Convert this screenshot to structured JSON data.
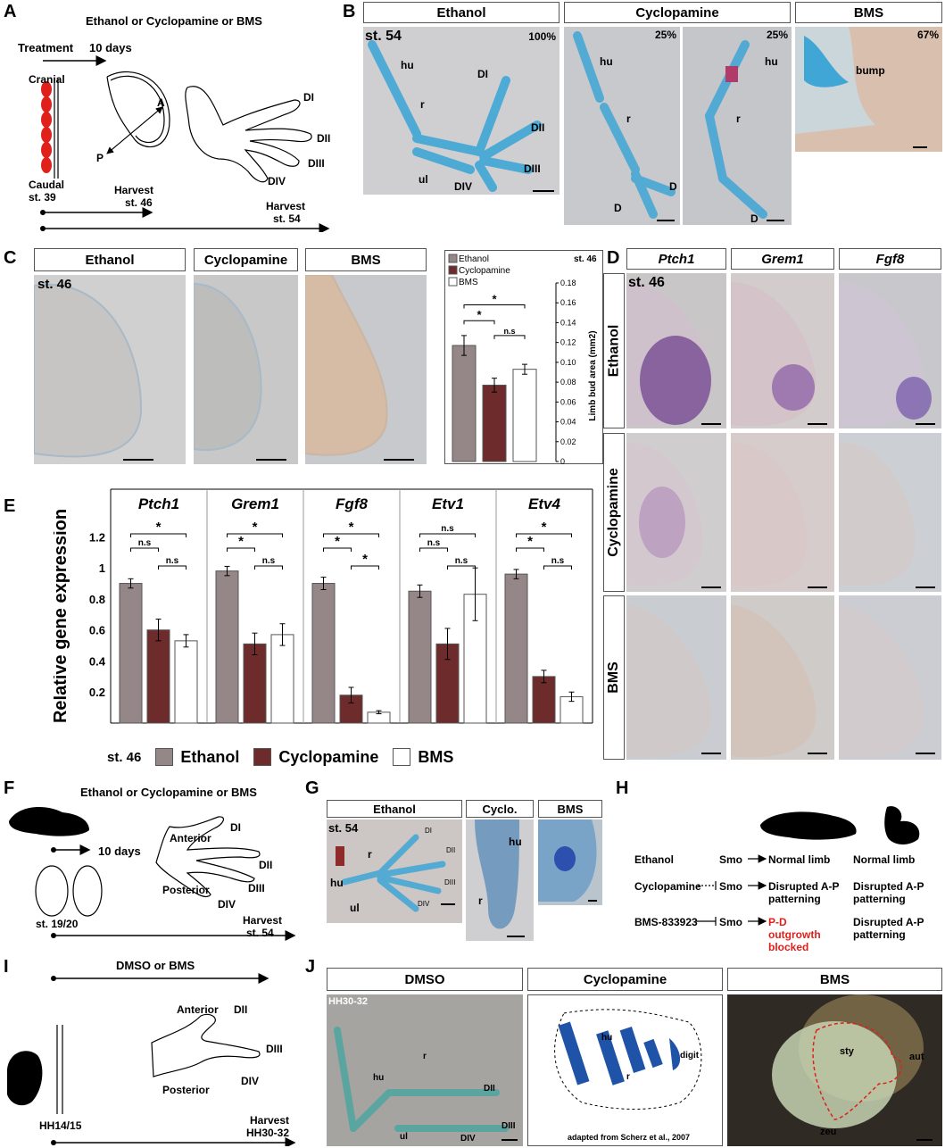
{
  "panels": {
    "A": {
      "label": "A",
      "header": "Ethanol or Cyclopamine or BMS",
      "treatment": "Treatment",
      "days": "10 days",
      "cranial": "Cranial",
      "caudal": "Caudal",
      "stage_start": "st. 39",
      "harvest1": "Harvest",
      "harvest1_stage": "st. 46",
      "harvest2": "Harvest",
      "harvest2_stage": "st. 54",
      "axis_a": "A",
      "axis_p": "P",
      "digits": [
        "DI",
        "DII",
        "DIII",
        "DIV"
      ]
    },
    "B": {
      "label": "B",
      "headers": [
        "Ethanol",
        "Cyclopamine",
        "BMS"
      ],
      "stage": "st. 54",
      "percents": [
        "100%",
        "25%",
        "25%",
        "67%"
      ],
      "ethanol_labels": [
        "hu",
        "r",
        "ul",
        "DI",
        "DII",
        "DIII",
        "DIV"
      ],
      "cyc1_labels": [
        "hu",
        "r",
        "D",
        "D"
      ],
      "cyc2_labels": [
        "hu",
        "r",
        "D"
      ],
      "bms_label": "bump"
    },
    "C": {
      "label": "C",
      "headers": [
        "Ethanol",
        "Cyclopamine",
        "BMS"
      ],
      "stage": "st. 46"
    },
    "D": {
      "label": "D",
      "headers": [
        "Ptch1",
        "Grem1",
        "Fgf8"
      ],
      "rows": [
        "Ethanol",
        "Cyclopamine",
        "BMS"
      ],
      "stage": "st. 46"
    },
    "E": {
      "label": "E",
      "stage": "st. 46",
      "legend": [
        "Ethanol",
        "Cyclopamine",
        "BMS"
      ]
    },
    "F": {
      "label": "F",
      "header": "Ethanol or Cyclopamine or BMS",
      "days": "10 days",
      "anterior": "Anterior",
      "posterior": "Posterior",
      "digits": [
        "DI",
        "DII",
        "DIII",
        "DIV"
      ],
      "stage_start": "st. 19/20",
      "harvest": "Harvest",
      "harvest_stage": "st. 54"
    },
    "G": {
      "label": "G",
      "headers": [
        "Ethanol",
        "Cyclo.",
        "BMS"
      ],
      "stage": "st. 54",
      "labels": [
        "hu",
        "r",
        "ul",
        "DI",
        "DII",
        "DIII",
        "DIV",
        "hu",
        "r"
      ]
    },
    "H": {
      "label": "H",
      "rows": [
        {
          "drug": "Ethanol",
          "target": "Smo",
          "axolotl": "Normal limb",
          "chicken": "Normal limb"
        },
        {
          "drug": "Cyclopamine",
          "target": "Smo",
          "axolotl": "Disrupted A-P patterning",
          "chicken": "Disrupted A-P patterning"
        },
        {
          "drug": "BMS-833923",
          "target": "Smo",
          "axolotl": "P-D outgrowth blocked",
          "chicken": "Disrupted A-P patterning"
        }
      ],
      "highlight_color": "#e0201b"
    },
    "I": {
      "label": "I",
      "header": "DMSO or BMS",
      "anterior": "Anterior",
      "posterior": "Posterior",
      "digits": [
        "DII",
        "DIII",
        "DIV"
      ],
      "stage_start": "HH14/15",
      "harvest": "Harvest",
      "harvest_stage": "HH30-32"
    },
    "J": {
      "label": "J",
      "headers": [
        "DMSO",
        "Cyclopamine",
        "BMS"
      ],
      "stage": "HH30-32",
      "dmso_labels": [
        "hu",
        "r",
        "ul",
        "DII",
        "DIII",
        "DIV"
      ],
      "cyc_labels": [
        "hu",
        "r",
        "digit"
      ],
      "cyc_credit": "adapted from Scherz et al., 2007",
      "bms_labels": [
        "sty",
        "aut",
        "zeu"
      ]
    }
  },
  "colors": {
    "ethanol": "#958688",
    "cyclopamine": "#6d2b2b",
    "bms": "#ffffff",
    "alcian": "#3fa6d6",
    "arrow": "#e0201b"
  },
  "chart_data": [
    {
      "type": "bar",
      "panel": "C",
      "stage": "st. 46",
      "categories": [
        "Ethanol",
        "Cyclopamine",
        "BMS"
      ],
      "values": [
        0.117,
        0.077,
        0.093
      ],
      "errors": [
        0.01,
        0.007,
        0.005
      ],
      "ylabel": "Limb bud area (mm2)",
      "ylim": [
        0,
        0.18
      ],
      "yticks": [
        "0",
        "0.02",
        "0.04",
        "0.06",
        "0.08",
        "0.10",
        "0.12",
        "0.14",
        "0.16",
        "0.18"
      ],
      "legend": [
        "Ethanol",
        "Cyclopamine",
        "BMS"
      ],
      "sig": [
        "*",
        "*",
        "n.s"
      ]
    },
    {
      "type": "bar",
      "panel": "E",
      "stage": "st. 46",
      "ylabel": "Relative gene expression",
      "ylim": [
        0,
        1.2
      ],
      "yticks": [
        "0.2",
        "0.4",
        "0.6",
        "0.8",
        "1",
        "1.2"
      ],
      "categories": [
        "Ptch1",
        "Grem1",
        "Fgf8",
        "Etv1",
        "Etv4"
      ],
      "series": [
        {
          "name": "Ethanol",
          "values": [
            0.9,
            0.98,
            0.9,
            0.85,
            0.96
          ],
          "errors": [
            0.03,
            0.03,
            0.04,
            0.04,
            0.03
          ]
        },
        {
          "name": "Cyclopamine",
          "values": [
            0.6,
            0.51,
            0.18,
            0.51,
            0.3
          ],
          "errors": [
            0.07,
            0.07,
            0.05,
            0.1,
            0.04
          ]
        },
        {
          "name": "BMS",
          "values": [
            0.53,
            0.57,
            0.07,
            0.83,
            0.17
          ],
          "errors": [
            0.04,
            0.07,
            0.01,
            0.17,
            0.03
          ]
        }
      ],
      "sig_labels": {
        "Ptch1": [
          "*",
          "n.s",
          "n.s"
        ],
        "Grem1": [
          "*",
          "*",
          "n.s"
        ],
        "Fgf8": [
          "*",
          "*",
          "*"
        ],
        "Etv1": [
          "n.s",
          "n.s",
          "n.s"
        ],
        "Etv4": [
          "*",
          "*",
          "n.s"
        ]
      }
    }
  ]
}
